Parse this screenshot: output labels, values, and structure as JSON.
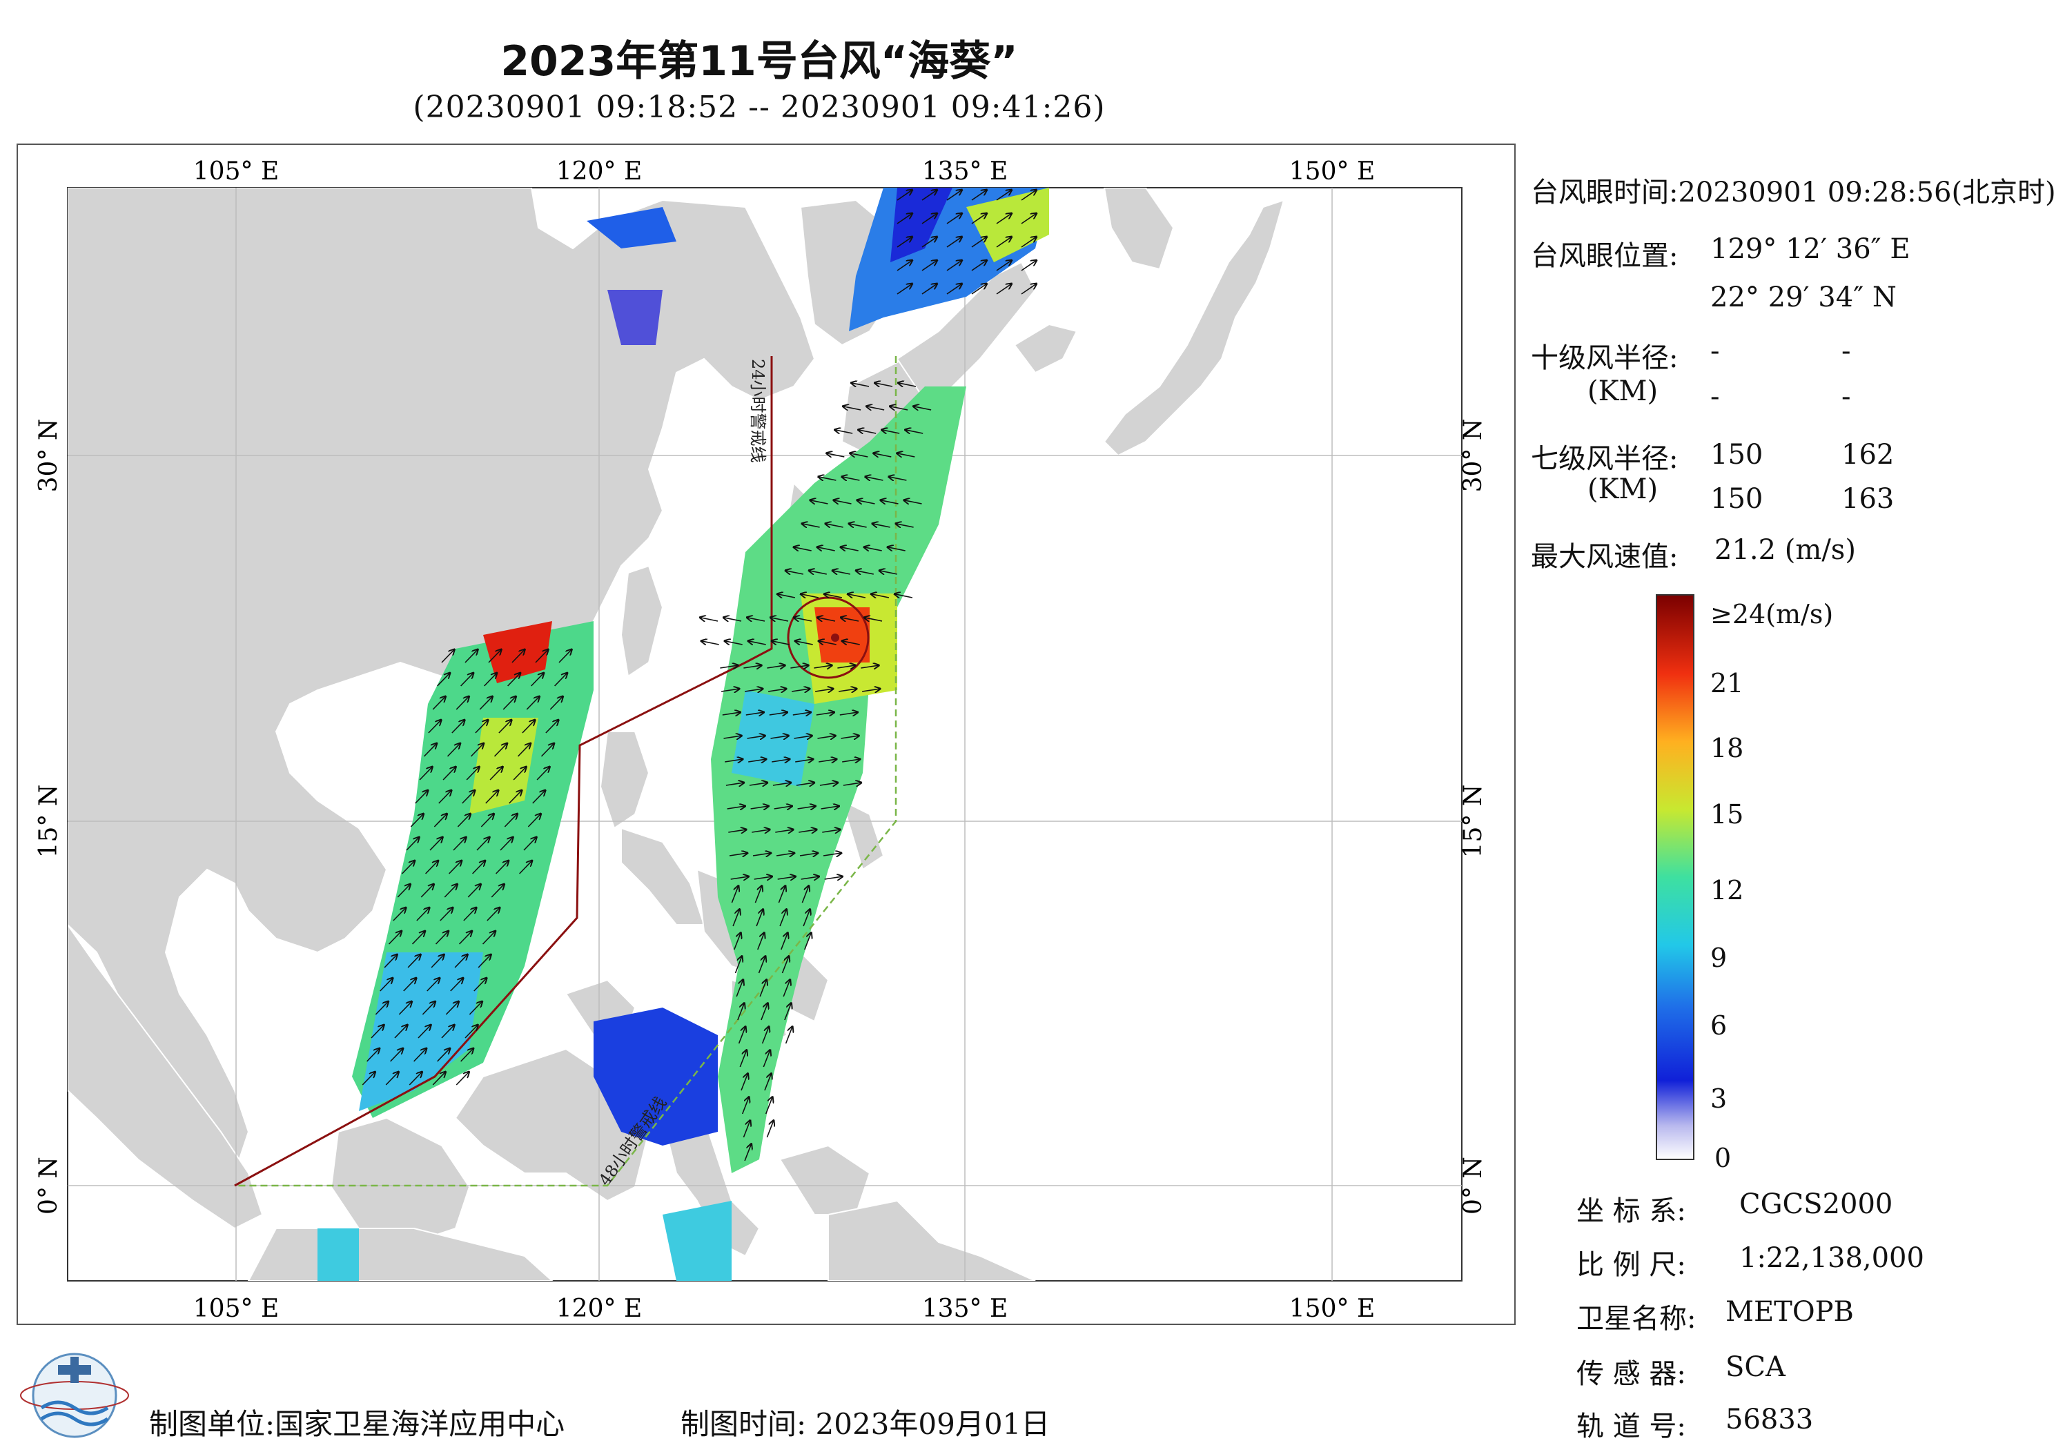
{
  "header": {
    "title": "2023年第11号台风“海葵”",
    "subtitle": "(20230901 09:18:52 -- 20230901 09:41:26)"
  },
  "map": {
    "lon_labels": [
      "105° E",
      "120° E",
      "135° E",
      "150° E"
    ],
    "lat_labels": [
      "30° N",
      "15° N",
      "0° N"
    ],
    "line_24h": "24小时警戒线",
    "line_48h": "48小时警戒线",
    "colors": {
      "land": "#d3d3d3",
      "sea": "#ffffff",
      "warning_24h": "#8b1010",
      "warning_48h": "#7ab648"
    }
  },
  "info": {
    "eye_time_label": "台风眼时间:",
    "eye_time_value": "20230901 09:28:56(北京时)",
    "eye_pos_label": "台风眼位置:",
    "eye_lon": "129° 12′ 36″ E",
    "eye_lat": "22° 29′ 34″ N",
    "r10_label": "十级风半径:",
    "r10_unit": "(KM)",
    "r10_values": [
      "-",
      "-",
      "-",
      "-"
    ],
    "r7_label": "七级风半径:",
    "r7_unit": "(KM)",
    "r7_values": [
      "150",
      "162",
      "150",
      "163"
    ],
    "max_wind_label": "最大风速值:",
    "max_wind_value": "21.2 (m/s)"
  },
  "colorbar": {
    "labels": [
      "≥24(m/s)",
      "21",
      "18",
      "15",
      "12",
      "9",
      "6",
      "3",
      "0"
    ],
    "min": 0,
    "max": 24
  },
  "meta": {
    "crs_label": "坐 标 系:",
    "crs_value": "CGCS2000",
    "scale_label": "比 例 尺:",
    "scale_value": "1:22,138,000",
    "satellite_label": "卫星名称:",
    "satellite_value": "METOPB",
    "sensor_label": "传 感 器:",
    "sensor_value": "SCA",
    "orbit_label": "轨 道 号:",
    "orbit_value": "56833"
  },
  "footer": {
    "unit_label": "制图单位:国家卫星海洋应用中心",
    "time_label": "制图时间:  2023年09月01日"
  }
}
